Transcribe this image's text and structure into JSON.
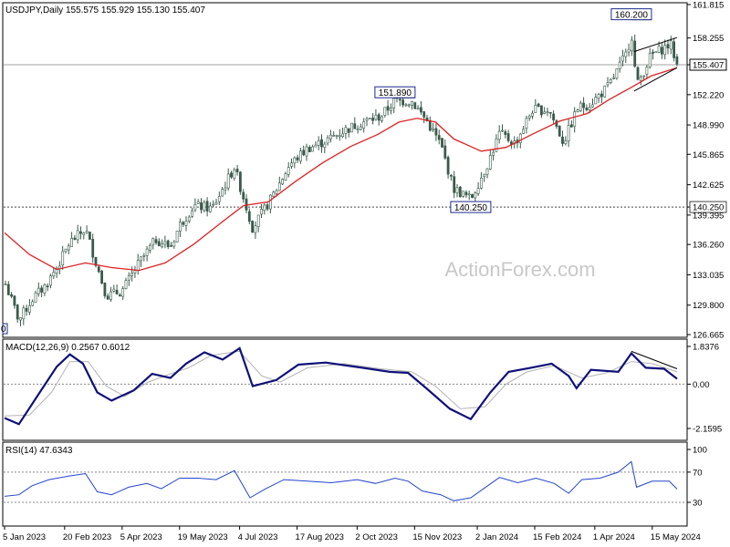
{
  "chart_data": [
    {
      "type": "candlestick",
      "title": "USDJPY,Daily",
      "ohlc_label": "155.575 155.929 155.130 155.407",
      "watermark": "ActionForex.com",
      "ylim": [
        126.665,
        161.815
      ],
      "y_ticks": [
        161.815,
        158.255,
        155.407,
        152.22,
        148.99,
        145.865,
        142.625,
        140.25,
        139.395,
        136.26,
        133.035,
        129.8,
        126.665
      ],
      "y_tick_labels": [
        "161.815",
        "158.255",
        "155.407",
        "152.220",
        "148.990",
        "145.865",
        "142.625",
        "140.250",
        "139.395",
        "136.260",
        "133.035",
        "129.800",
        "126.665"
      ],
      "current_price": {
        "value": 155.407,
        "label": "155.407"
      },
      "support_line": {
        "value": 140.25,
        "label": "140.250"
      },
      "annotations": [
        {
          "date": "2023-10-31",
          "value": 151.89,
          "label": "151.890"
        },
        {
          "date": "2023-12-28",
          "value": 140.25,
          "label": "140.250"
        },
        {
          "date": "2024-04-29",
          "value": 160.2,
          "label": "160.200"
        }
      ],
      "left_edge_label": "0",
      "close_path": [
        [
          "2023-01-05",
          132.3
        ],
        [
          "2023-01-16",
          128.2
        ],
        [
          "2023-01-26",
          130.4
        ],
        [
          "2023-02-06",
          132.0
        ],
        [
          "2023-02-16",
          134.3
        ],
        [
          "2023-02-24",
          136.5
        ],
        [
          "2023-03-08",
          137.9
        ],
        [
          "2023-03-17",
          133.9
        ],
        [
          "2023-03-24",
          130.8
        ],
        [
          "2023-04-05",
          131.3
        ],
        [
          "2023-04-18",
          134.3
        ],
        [
          "2023-05-01",
          136.8
        ],
        [
          "2023-05-12",
          136.0
        ],
        [
          "2023-05-19",
          138.3
        ],
        [
          "2023-05-30",
          140.4
        ],
        [
          "2023-06-13",
          140.1
        ],
        [
          "2023-06-30",
          144.5
        ],
        [
          "2023-07-14",
          138.0
        ],
        [
          "2023-07-28",
          141.1
        ],
        [
          "2023-08-11",
          144.7
        ],
        [
          "2023-08-25",
          146.5
        ],
        [
          "2023-09-08",
          147.3
        ],
        [
          "2023-09-22",
          148.4
        ],
        [
          "2023-10-06",
          149.3
        ],
        [
          "2023-10-20",
          149.9
        ],
        [
          "2023-10-31",
          151.6
        ],
        [
          "2023-11-13",
          151.5
        ],
        [
          "2023-11-24",
          149.5
        ],
        [
          "2023-12-05",
          146.9
        ],
        [
          "2023-12-15",
          142.2
        ],
        [
          "2023-12-28",
          141.1
        ],
        [
          "2024-01-10",
          144.9
        ],
        [
          "2024-01-19",
          148.1
        ],
        [
          "2024-01-31",
          147.0
        ],
        [
          "2024-02-13",
          150.6
        ],
        [
          "2024-02-26",
          150.6
        ],
        [
          "2024-03-08",
          147.1
        ],
        [
          "2024-03-19",
          150.8
        ],
        [
          "2024-03-29",
          151.3
        ],
        [
          "2024-04-12",
          153.2
        ],
        [
          "2024-04-26",
          156.8
        ],
        [
          "2024-04-29",
          159.0
        ],
        [
          "2024-05-03",
          153.1
        ],
        [
          "2024-05-14",
          156.4
        ],
        [
          "2024-05-29",
          157.6
        ],
        [
          "2024-06-03",
          155.407
        ]
      ],
      "ma_path": [
        [
          "2023-01-05",
          137.5
        ],
        [
          "2023-01-24",
          135.2
        ],
        [
          "2023-02-14",
          133.6
        ],
        [
          "2023-03-08",
          134.3
        ],
        [
          "2023-03-28",
          133.8
        ],
        [
          "2023-04-18",
          133.5
        ],
        [
          "2023-05-08",
          134.3
        ],
        [
          "2023-05-30",
          136.3
        ],
        [
          "2023-06-20",
          138.6
        ],
        [
          "2023-07-07",
          140.4
        ],
        [
          "2023-07-26",
          140.8
        ],
        [
          "2023-08-16",
          143.0
        ],
        [
          "2023-09-06",
          145.0
        ],
        [
          "2023-09-27",
          146.7
        ],
        [
          "2023-10-18",
          148.0
        ],
        [
          "2023-11-03",
          149.3
        ],
        [
          "2023-11-17",
          149.7
        ],
        [
          "2023-12-01",
          149.3
        ],
        [
          "2023-12-15",
          147.5
        ],
        [
          "2024-01-05",
          146.2
        ],
        [
          "2024-01-24",
          146.6
        ],
        [
          "2024-02-13",
          148.0
        ],
        [
          "2024-03-05",
          149.4
        ],
        [
          "2024-03-26",
          150.2
        ],
        [
          "2024-04-12",
          151.7
        ],
        [
          "2024-04-29",
          153.0
        ],
        [
          "2024-05-14",
          154.2
        ],
        [
          "2024-06-03",
          155.1
        ]
      ],
      "channel_upper": [
        [
          "2024-05-01",
          156.8
        ],
        [
          "2024-06-03",
          158.3
        ]
      ],
      "channel_lower": [
        [
          "2024-05-01",
          152.6
        ],
        [
          "2024-06-03",
          155.1
        ]
      ],
      "x_tick_labels": [
        {
          "date": "2023-01-05",
          "label": "5 Jan 2023"
        },
        {
          "date": "2023-02-20",
          "label": "20 Feb 2023"
        },
        {
          "date": "2023-04-05",
          "label": "5 Apr 2023"
        },
        {
          "date": "2023-05-19",
          "label": "19 May 2023"
        },
        {
          "date": "2023-07-04",
          "label": "4 Jul 2023"
        },
        {
          "date": "2023-08-17",
          "label": "17 Aug 2023"
        },
        {
          "date": "2023-10-02",
          "label": "2 Oct 2023"
        },
        {
          "date": "2023-11-15",
          "label": "15 Nov 2023"
        },
        {
          "date": "2024-01-02",
          "label": "2 Jan 2024"
        },
        {
          "date": "2024-02-15",
          "label": "15 Feb 2024"
        },
        {
          "date": "2024-04-01",
          "label": "1 Apr 2024"
        },
        {
          "date": "2024-05-15",
          "label": "15 May 2024"
        }
      ],
      "colors": {
        "candle": "#3a5a4a",
        "ma": "#dd2222",
        "label_border": "#1c2a8c"
      }
    },
    {
      "type": "line",
      "title": "MACD(12,26,9) 0.2567 0.6012",
      "ylim": [
        -2.1595,
        1.8376
      ],
      "y_tick_labels": [
        {
          "value": 1.8376,
          "label": "1.8376"
        },
        {
          "value": 0.0,
          "label": "0.00"
        },
        {
          "value": -2.1595,
          "label": "-2.1595"
        }
      ],
      "series": [
        {
          "values": [
            [
              "2023-01-05",
              -1.65
            ],
            [
              "2023-01-16",
              -1.95
            ],
            [
              "2023-02-01",
              -0.4
            ],
            [
              "2023-02-14",
              0.85
            ],
            [
              "2023-02-24",
              1.45
            ],
            [
              "2023-03-06",
              1.0
            ],
            [
              "2023-03-17",
              -0.4
            ],
            [
              "2023-03-28",
              -0.8
            ],
            [
              "2023-04-14",
              -0.3
            ],
            [
              "2023-04-28",
              0.5
            ],
            [
              "2023-05-12",
              0.3
            ],
            [
              "2023-05-24",
              1.0
            ],
            [
              "2023-06-07",
              1.55
            ],
            [
              "2023-06-21",
              1.2
            ],
            [
              "2023-07-04",
              1.75
            ],
            [
              "2023-07-14",
              -0.1
            ],
            [
              "2023-08-01",
              0.2
            ],
            [
              "2023-08-18",
              0.95
            ],
            [
              "2023-09-08",
              1.05
            ],
            [
              "2023-10-06",
              0.8
            ],
            [
              "2023-10-27",
              0.6
            ],
            [
              "2023-11-10",
              0.55
            ],
            [
              "2023-11-24",
              -0.2
            ],
            [
              "2023-12-12",
              -1.2
            ],
            [
              "2023-12-28",
              -1.7
            ],
            [
              "2024-01-12",
              -0.4
            ],
            [
              "2024-01-26",
              0.6
            ],
            [
              "2024-02-12",
              0.8
            ],
            [
              "2024-02-28",
              1.0
            ],
            [
              "2024-03-12",
              0.4
            ],
            [
              "2024-03-18",
              -0.2
            ],
            [
              "2024-03-29",
              0.7
            ],
            [
              "2024-04-19",
              0.6
            ],
            [
              "2024-04-29",
              1.5
            ],
            [
              "2024-05-10",
              0.8
            ],
            [
              "2024-05-24",
              0.75
            ],
            [
              "2024-06-03",
              0.26
            ]
          ]
        },
        {
          "values": [
            [
              "2023-01-05",
              -1.55
            ],
            [
              "2023-01-24",
              -1.5
            ],
            [
              "2023-02-10",
              -0.4
            ],
            [
              "2023-02-24",
              1.1
            ],
            [
              "2023-03-10",
              1.1
            ],
            [
              "2023-03-24",
              -0.1
            ],
            [
              "2023-04-07",
              -0.6
            ],
            [
              "2023-04-25",
              0.1
            ],
            [
              "2023-05-12",
              0.5
            ],
            [
              "2023-05-26",
              0.8
            ],
            [
              "2023-06-12",
              1.4
            ],
            [
              "2023-07-04",
              1.6
            ],
            [
              "2023-07-21",
              0.4
            ],
            [
              "2023-08-04",
              0.1
            ],
            [
              "2023-08-25",
              0.8
            ],
            [
              "2023-09-22",
              1.0
            ],
            [
              "2023-10-20",
              0.75
            ],
            [
              "2023-11-13",
              0.6
            ],
            [
              "2023-12-01",
              -0.1
            ],
            [
              "2023-12-20",
              -1.2
            ],
            [
              "2024-01-08",
              -1.1
            ],
            [
              "2024-01-24",
              0.0
            ],
            [
              "2024-02-09",
              0.6
            ],
            [
              "2024-03-01",
              0.9
            ],
            [
              "2024-03-22",
              0.3
            ],
            [
              "2024-04-10",
              0.55
            ],
            [
              "2024-04-29",
              1.1
            ],
            [
              "2024-05-15",
              1.0
            ],
            [
              "2024-06-03",
              0.6
            ]
          ]
        }
      ],
      "trend_line": [
        [
          "2024-04-29",
          1.6
        ],
        [
          "2024-06-03",
          0.75
        ]
      ]
    },
    {
      "type": "line",
      "title": "RSI(14) 47.6343",
      "ylim": [
        10,
        100
      ],
      "y_tick_labels": [
        {
          "value": 100,
          "label": "100"
        },
        {
          "value": 70,
          "label": "70"
        },
        {
          "value": 30,
          "label": "30"
        }
      ],
      "levels": [
        70,
        30
      ],
      "series": [
        {
          "values": [
            [
              "2023-01-05",
              38
            ],
            [
              "2023-01-16",
              40
            ],
            [
              "2023-01-26",
              52
            ],
            [
              "2023-02-08",
              60
            ],
            [
              "2023-02-24",
              65
            ],
            [
              "2023-03-08",
              68
            ],
            [
              "2023-03-17",
              44
            ],
            [
              "2023-03-28",
              40
            ],
            [
              "2023-04-10",
              50
            ],
            [
              "2023-04-24",
              55
            ],
            [
              "2023-05-05",
              48
            ],
            [
              "2023-05-19",
              62
            ],
            [
              "2023-06-02",
              62
            ],
            [
              "2023-06-16",
              60
            ],
            [
              "2023-06-30",
              72
            ],
            [
              "2023-07-12",
              36
            ],
            [
              "2023-07-24",
              48
            ],
            [
              "2023-08-07",
              60
            ],
            [
              "2023-08-25",
              58
            ],
            [
              "2023-09-12",
              56
            ],
            [
              "2023-10-02",
              60
            ],
            [
              "2023-10-16",
              55
            ],
            [
              "2023-10-31",
              62
            ],
            [
              "2023-11-10",
              58
            ],
            [
              "2023-11-21",
              45
            ],
            [
              "2023-12-05",
              40
            ],
            [
              "2023-12-15",
              32
            ],
            [
              "2023-12-28",
              36
            ],
            [
              "2024-01-10",
              52
            ],
            [
              "2024-01-19",
              63
            ],
            [
              "2024-02-02",
              56
            ],
            [
              "2024-02-16",
              62
            ],
            [
              "2024-03-01",
              55
            ],
            [
              "2024-03-12",
              42
            ],
            [
              "2024-03-22",
              60
            ],
            [
              "2024-04-05",
              62
            ],
            [
              "2024-04-19",
              70
            ],
            [
              "2024-04-29",
              84
            ],
            [
              "2024-05-03",
              50
            ],
            [
              "2024-05-15",
              58
            ],
            [
              "2024-05-28",
              58
            ],
            [
              "2024-06-03",
              47.6
            ]
          ]
        }
      ]
    }
  ]
}
